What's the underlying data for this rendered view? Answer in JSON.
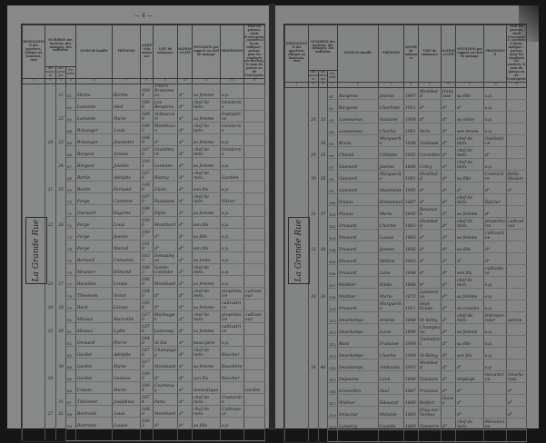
{
  "left_page": {
    "page_number": "— 4 —",
    "street": "La Grande Rue",
    "rows": [
      {
        "house": "",
        "menage": "21",
        "num": "61",
        "nom": "Moine",
        "prenom": "Berthe",
        "annee": "1894",
        "lieu": "Villers-Bretonneux",
        "nat": "d°",
        "situation": "sa femme",
        "profession": "s.p.",
        "remarque": ""
      },
      {
        "house": "",
        "menage": "",
        "num": "62",
        "nom": "Lamonte",
        "prenom": "Abel",
        "annee": "1886",
        "lieu": "Les Bergères",
        "nat": "d°",
        "situation": "chef de mén.",
        "profession": "Gendarme",
        "remarque": ""
      },
      {
        "house": "",
        "menage": "22",
        "num": "63",
        "nom": "Lamonte",
        "prenom": "Marie",
        "annee": "1898",
        "lieu": "Vollaucourt",
        "nat": "d°",
        "situation": "sa femme",
        "profession": "Institutrice",
        "remarque": ""
      },
      {
        "house": "",
        "menage": "",
        "num": "64",
        "nom": "Brisanger",
        "prenom": "Louis",
        "annee": "1883",
        "lieu": "Montbazon",
        "nat": "d°",
        "situation": "chef de mén.",
        "profession": "Gendarme",
        "remarque": ""
      },
      {
        "house": "20",
        "menage": "23",
        "num": "65",
        "nom": "Brisanger",
        "prenom": "Jeannette",
        "annee": "1889",
        "lieu": "d°",
        "nat": "d°",
        "situation": "sa femme",
        "profession": "s.p.",
        "remarque": ""
      },
      {
        "house": "",
        "menage": "",
        "num": "66",
        "nom": "Bergeot",
        "prenom": "Arsène",
        "annee": "1876",
        "lieu": "Grandmont",
        "nat": "d°",
        "situation": "chef de mén.",
        "profession": "Gendarme",
        "remarque": ""
      },
      {
        "house": "",
        "menage": "24",
        "num": "67",
        "nom": "Bergeot",
        "prenom": "Juliette",
        "annee": "1901",
        "lieu": "Lemoine",
        "nat": "d°",
        "situation": "sa femme",
        "profession": "s.p.",
        "remarque": ""
      },
      {
        "house": "",
        "menage": "",
        "num": "68",
        "nom": "Berlin",
        "prenom": "Adolphe",
        "annee": "1876",
        "lieu": "Blanzy",
        "nat": "d°",
        "situation": "chef de mén.",
        "profession": "Gardien",
        "remarque": ""
      },
      {
        "house": "21",
        "menage": "25",
        "num": "69",
        "nom": "Berlin",
        "prenom": "Fernand",
        "annee": "1900",
        "lieu": "Gilaiz",
        "nat": "d°",
        "situation": "son fils",
        "profession": "s.p.",
        "remarque": ""
      },
      {
        "house": "",
        "menage": "",
        "num": "70",
        "nom": "Forge",
        "prenom": "Constant",
        "annee": "1878",
        "lieu": "Paisianne",
        "nat": "d°",
        "situation": "chef de mén.",
        "profession": "Vitrier",
        "remarque": ""
      },
      {
        "house": "",
        "menage": "",
        "num": "71",
        "nom": "Guenard",
        "prenom": "Eugénie",
        "annee": "1882",
        "lieu": "Dijon",
        "nat": "d°",
        "situation": "sa femme",
        "profession": "s.p.",
        "remarque": ""
      },
      {
        "house": "22",
        "menage": "26",
        "num": "72",
        "nom": "Forge",
        "prenom": "Louis",
        "annee": "1906",
        "lieu": "Montbard",
        "nat": "d°",
        "situation": "son fils",
        "profession": "s.p.",
        "remarque": ""
      },
      {
        "house": "",
        "menage": "",
        "num": "73",
        "nom": "Forge",
        "prenom": "Jeanne",
        "annee": "1907",
        "lieu": "d°",
        "nat": "d°",
        "situation": "sa fille",
        "profession": "s.p.",
        "remarque": ""
      },
      {
        "house": "",
        "menage": "",
        "num": "74",
        "nom": "Forge",
        "prenom": "Marcel",
        "annee": "1910",
        "lieu": "d°",
        "nat": "d°",
        "situation": "son fils",
        "profession": "s.p.",
        "remarque": ""
      },
      {
        "house": "",
        "menage": "",
        "num": "75",
        "nom": "Bernard",
        "prenom": "Célestine",
        "annee": "1833",
        "lieu": "Somsaleyes",
        "nat": "d°",
        "situation": "sa tante",
        "profession": "s.p.",
        "remarque": ""
      },
      {
        "house": "",
        "menage": "",
        "num": "76",
        "nom": "Mounier",
        "prenom": "Edmond",
        "annee": "1863",
        "lieu": "Sainte-Colombe",
        "nat": "d°",
        "situation": "chef de mén.",
        "profession": "s.p.",
        "remarque": ""
      },
      {
        "house": "23",
        "menage": "27",
        "num": "77",
        "nom": "Rocailles",
        "prenom": "Louise",
        "annee": "1869",
        "lieu": "Montbard",
        "nat": "d°",
        "situation": "sa femme",
        "profession": "s.p.",
        "remarque": ""
      },
      {
        "house": "",
        "menage": "",
        "num": "78",
        "nom": "Thevenon",
        "prenom": "Victor",
        "annee": "1846",
        "lieu": "d°",
        "nat": "d°",
        "situation": "chef de mén.",
        "profession": "propriétaire",
        "remarque": "cultivateur"
      },
      {
        "house": "24",
        "menage": "28",
        "num": "79",
        "nom": "Roch",
        "prenom": "Léonie",
        "annee": "1856",
        "lieu": "d°",
        "nat": "d°",
        "situation": "sa femme",
        "profession": "cultivatrice",
        "remarque": ""
      },
      {
        "house": "",
        "menage": "",
        "num": "80",
        "nom": "Minaux",
        "prenom": "Marcellin",
        "annee": "1870",
        "lieu": "Marmagne",
        "nat": "d°",
        "situation": "chef de mén.",
        "profession": "propriétaire",
        "remarque": "cultivateur"
      },
      {
        "house": "25",
        "menage": "29",
        "num": "81",
        "nom": "Minaux",
        "prenom": "Lydie",
        "annee": "1876",
        "lieu": "Lamonay",
        "nat": "d°",
        "situation": "sa femme",
        "profession": "cultivatrice",
        "remarque": ""
      },
      {
        "house": "",
        "menage": "",
        "num": "82",
        "nom": "Drouard",
        "prenom": "Pierre",
        "annee": "1840",
        "lieu": "St Fal",
        "nat": "d°",
        "situation": "beau-père",
        "profession": "s.p.",
        "remarque": ""
      },
      {
        "house": "",
        "menage": "",
        "num": "83",
        "nom": "Gardot",
        "prenom": "Adolphe",
        "annee": "1876",
        "lieu": "Champigny",
        "nat": "d°",
        "situation": "chef de mén.",
        "profession": "Boucher",
        "remarque": ""
      },
      {
        "house": "",
        "menage": "30",
        "num": "84",
        "nom": "Gardot",
        "prenom": "Marie",
        "annee": "1879",
        "lieu": "Montbard",
        "nat": "d°",
        "situation": "sa femme",
        "profession": "Bouchère",
        "remarque": ""
      },
      {
        "house": "26",
        "menage": "",
        "num": "85",
        "nom": "Gardot",
        "prenom": "Gustave",
        "annee": "1900",
        "lieu": "d°",
        "nat": "d°",
        "situation": "son fils",
        "profession": "Boucher",
        "remarque": ""
      },
      {
        "house": "",
        "menage": "",
        "num": "86",
        "nom": "Cousin",
        "prenom": "Marie",
        "annee": "1904",
        "lieu": "Courtenay",
        "nat": "d°",
        "situation": "domestique",
        "profession": "",
        "remarque": "Gardot"
      },
      {
        "house": "",
        "menage": "31",
        "num": "87",
        "nom": "Thélonier",
        "prenom": "Joséphine",
        "annee": "1874",
        "lieu": "Paris",
        "nat": "d°",
        "situation": "chef de mén.",
        "profession": "Couturière",
        "remarque": ""
      },
      {
        "house": "27",
        "menage": "32",
        "num": "88",
        "nom": "Bertrand",
        "prenom": "Louis",
        "annee": "1880",
        "lieu": "Montbard",
        "nat": "d°",
        "situation": "chef de mén.",
        "profession": "Cultivateur",
        "remarque": ""
      },
      {
        "house": "",
        "menage": "",
        "num": "89",
        "nom": "Bertrand",
        "prenom": "Louise",
        "annee": "1882",
        "lieu": "d°",
        "nat": "d°",
        "situation": "sa fille",
        "profession": "s.p.",
        "remarque": ""
      },
      {
        "house": "",
        "menage": "",
        "num": "90",
        "nom": "Bernard",
        "prenom": "Hélène",
        "annee": "1881",
        "lieu": "Fresnes",
        "nat": "d°",
        "situation": "chef de mén.",
        "profession": "Couturière",
        "remarque": ""
      }
    ]
  },
  "right_page": {
    "street": "La Grande Rue",
    "rows": [
      {
        "house": "",
        "menage": "",
        "num": "91",
        "nom": "Burgeois",
        "prenom": "Jeanne",
        "annee": "1907",
        "lieu": "Montbard",
        "nat": "française",
        "situation": "sa fille",
        "profession": "s.p.",
        "remarque": ""
      },
      {
        "house": "",
        "menage": "",
        "num": "92",
        "nom": "Burgeois",
        "prenom": "Charlotte",
        "annee": "1911",
        "lieu": "d°",
        "nat": "d°",
        "situation": "d°",
        "profession": "s.p.",
        "remarque": ""
      },
      {
        "house": "28",
        "menage": "33",
        "num": "93",
        "nom": "Lamoureux",
        "prenom": "Suzanne",
        "annee": "1906",
        "lieu": "d°",
        "nat": "d°",
        "situation": "sa nièce",
        "profession": "s.p.",
        "remarque": ""
      },
      {
        "house": "",
        "menage": "",
        "num": "94",
        "nom": "Lamoureux",
        "prenom": "Charles",
        "annee": "1901",
        "lieu": "Paris",
        "nat": "d°",
        "situation": "son neveu",
        "profession": "s.p.",
        "remarque": ""
      },
      {
        "house": "",
        "menage": "34",
        "num": "95",
        "nom": "Brans",
        "prenom": "Marguerite",
        "annee": "1898",
        "lieu": "Toulouse",
        "nat": "d°",
        "situation": "chef de mén.",
        "profession": "Institutrice",
        "remarque": ""
      },
      {
        "house": "29",
        "menage": "35",
        "num": "96",
        "nom": "Chenal",
        "prenom": "Célestin",
        "annee": "1882",
        "lieu": "Corcelles",
        "nat": "d°",
        "situation": "chef de mén.",
        "profession": "d°",
        "remarque": ""
      },
      {
        "house": "",
        "menage": "",
        "num": "97",
        "nom": "Guenard",
        "prenom": "Jeanne",
        "annee": "1868",
        "lieu": "Crécy",
        "nat": "d°",
        "situation": "chef de mén.",
        "profession": "s.p.",
        "remarque": ""
      },
      {
        "house": "30",
        "menage": "36",
        "num": "98",
        "nom": "Guenard",
        "prenom": "Marguerite",
        "annee": "1901",
        "lieu": "Montbard",
        "nat": "d°",
        "situation": "sa fille",
        "profession": "Couturière",
        "remarque": "Belle-Maison"
      },
      {
        "house": "",
        "menage": "",
        "num": "99",
        "nom": "Guenard",
        "prenom": "Madeleine",
        "annee": "1905",
        "lieu": "d°",
        "nat": "d°",
        "situation": "d°",
        "profession": "d°",
        "remarque": "d°"
      },
      {
        "house": "",
        "menage": "",
        "num": "100",
        "nom": "Pinaux",
        "prenom": "Emmanuel",
        "annee": "1887",
        "lieu": "d°",
        "nat": "d°",
        "situation": "chef de mén.",
        "profession": "Épicier",
        "remarque": ""
      },
      {
        "house": "31",
        "menage": "37",
        "num": "101",
        "nom": "Pinaux",
        "prenom": "Marie",
        "annee": "1892",
        "lieu": "Besançon",
        "nat": "d°",
        "situation": "sa femme",
        "profession": "d°",
        "remarque": ""
      },
      {
        "house": "",
        "menage": "",
        "num": "102",
        "nom": "Drouard",
        "prenom": "Charles",
        "annee": "1883",
        "lieu": "Montbard",
        "nat": "d°",
        "situation": "chef de mén.",
        "profession": "propriétaire",
        "remarque": "cultivateur"
      },
      {
        "house": "",
        "menage": "",
        "num": "103",
        "nom": "Drouard",
        "prenom": "Louise",
        "annee": "1883",
        "lieu": "d°",
        "nat": "d°",
        "situation": "sa femme",
        "profession": "cultivatrice",
        "remarque": ""
      },
      {
        "house": "32",
        "menage": "38",
        "num": "104",
        "nom": "Drouard",
        "prenom": "Jeanne",
        "annee": "1895",
        "lieu": "d°",
        "nat": "d°",
        "situation": "sa fille",
        "profession": "d°",
        "remarque": ""
      },
      {
        "house": "",
        "menage": "",
        "num": "105",
        "nom": "Drouard",
        "prenom": "Hélène",
        "annee": "1903",
        "lieu": "d°",
        "nat": "d°",
        "situation": "d°",
        "profession": "d°",
        "remarque": ""
      },
      {
        "house": "",
        "menage": "",
        "num": "106",
        "nom": "Drouard",
        "prenom": "Léon",
        "annee": "1906",
        "lieu": "d°",
        "nat": "d°",
        "situation": "son fils",
        "profession": "cultivateur",
        "remarque": ""
      },
      {
        "house": "",
        "menage": "",
        "num": "107",
        "nom": "Mothier",
        "prenom": "Emile",
        "annee": "1868",
        "lieu": "d°",
        "nat": "d°",
        "situation": "chef de mén.",
        "profession": "s.p.",
        "remarque": ""
      },
      {
        "house": "33",
        "menage": "39",
        "num": "108",
        "nom": "Mothier",
        "prenom": "Marie",
        "annee": "1873",
        "lieu": "Lamoureux",
        "nat": "d°",
        "situation": "sa femme",
        "profession": "s.p.",
        "remarque": ""
      },
      {
        "house": "",
        "menage": "",
        "num": "109",
        "nom": "Drouard",
        "prenom": "Marguerite",
        "annee": "1911",
        "lieu": "Sept-Fonds",
        "nat": "d°",
        "situation": "sa cousine",
        "profession": "s.p.",
        "remarque": ""
      },
      {
        "house": "",
        "menage": "",
        "num": "110",
        "nom": "Deschamps",
        "prenom": "Arsène",
        "annee": "1888",
        "lieu": "St-Rémy",
        "nat": "d°",
        "situation": "chef de mén.",
        "profession": "Entrepreneur",
        "remarque": "patron"
      },
      {
        "house": "",
        "menage": "",
        "num": "111",
        "nom": "Deschamps",
        "prenom": "Lucie",
        "annee": "1896",
        "lieu": "Champeaux",
        "nat": "d°",
        "situation": "sa femme",
        "profession": "s.p.",
        "remarque": ""
      },
      {
        "house": "",
        "menage": "",
        "num": "112",
        "nom": "Bard",
        "prenom": "Francine",
        "annee": "1900",
        "lieu": "Vieillefont",
        "nat": "d°",
        "situation": "sa fille",
        "profession": "s.p.",
        "remarque": ""
      },
      {
        "house": "",
        "menage": "",
        "num": "113",
        "nom": "Deschamps",
        "prenom": "Charles",
        "annee": "1909",
        "lieu": "St-Rémy",
        "nat": "d°",
        "situation": "son fils",
        "profession": "s.p.",
        "remarque": ""
      },
      {
        "house": "34",
        "menage": "40",
        "num": "114",
        "nom": "Deschamps",
        "prenom": "Ambroise",
        "annee": "1915",
        "lieu": "Montbard",
        "nat": "d°",
        "situation": "d°",
        "profession": "s.p.",
        "remarque": ""
      },
      {
        "house": "",
        "menage": "",
        "num": "115",
        "nom": "Dejeanne",
        "prenom": "Léon",
        "annee": "1898",
        "lieu": "Vouziers",
        "nat": "d°",
        "situation": "employé",
        "profession": "mécanicien",
        "remarque": "Deschamps"
      },
      {
        "house": "",
        "menage": "",
        "num": "116",
        "nom": "Gruveillon",
        "prenom": "Paul",
        "annee": "1887",
        "lieu": "Fraisnes",
        "nat": "d°",
        "situation": "d°",
        "profession": "",
        "remarque": "d°"
      },
      {
        "house": "",
        "menage": "",
        "num": "117",
        "nom": "Widmer",
        "prenom": "Edouard",
        "annee": "1868",
        "lieu": "Belfort",
        "nat": "Suisse",
        "situation": "d°",
        "profession": "",
        "remarque": "d°"
      },
      {
        "house": "",
        "menage": "",
        "num": "118",
        "nom": "Delacour",
        "prenom": "Mélanie",
        "annee": "1883",
        "lieu": "Pouy-sur-Vannes",
        "nat": "",
        "situation": "d°",
        "profession": "",
        "remarque": "d°"
      },
      {
        "house": "",
        "menage": "",
        "num": "119",
        "nom": "Lamarcy",
        "prenom": "Camille",
        "annee": "1889",
        "lieu": "Tonnerre",
        "nat": "d°",
        "situation": "chef de mén.",
        "profession": "Mécanicien",
        "remarque": ""
      },
      {
        "house": "",
        "menage": "",
        "num": "120",
        "nom": "Lamarcy",
        "prenom": "Louise",
        "annee": "1889",
        "lieu": "Montbard",
        "nat": "d°",
        "situation": "sa femme",
        "profession": "s.p.",
        "remarque": ""
      }
    ]
  },
  "headers": {
    "designation": "DÉSIGNATION des quartiers, villages ou hameaux, rues",
    "numeros": "NUMÉROS des maisons, des ménages, des individus",
    "maisons": "des maisons",
    "menages": "des ménages",
    "individus": "des indiv.",
    "noms": "NOMS de famille",
    "prenoms": "PRÉNOMS",
    "annee": "ANNÉE de naissance",
    "lieu": "LIEU de naissance",
    "nationalite": "NATIONA-LITÉ",
    "situation": "SITUATION par rapport au chef de ménage",
    "profession": "PROFESSION",
    "remarque": "Pour les patrons, chefs d'entreprise, ouvriers à façon, indiquer : patron; pour les employés ou ouvriers, le nom du patron ou de l'entreprise",
    "col_numbers": [
      "1",
      "2",
      "3",
      "4",
      "5",
      "6",
      "7",
      "8",
      "9",
      "10",
      "11",
      "12",
      "13"
    ]
  },
  "colors": {
    "paper": "#878888",
    "background": "#161616",
    "ink": "#1b1b1b"
  }
}
